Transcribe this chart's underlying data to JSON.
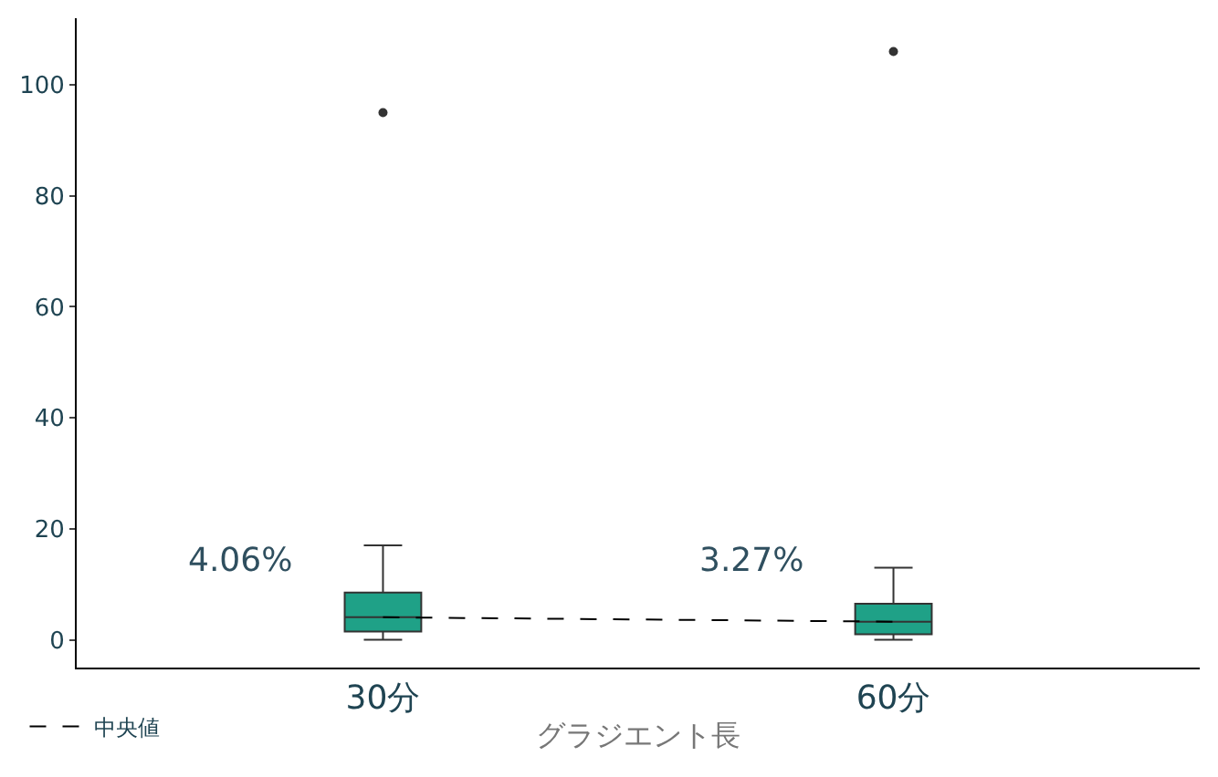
{
  "chart_data": {
    "type": "box",
    "xlabel": "グラジエント長",
    "categories": [
      "30分",
      "60分"
    ],
    "ylim": [
      -5,
      112
    ],
    "yticks": [
      0,
      20,
      40,
      60,
      80,
      100
    ],
    "grid": false,
    "legend": "bottom left",
    "series": [
      {
        "color": "#1fa187",
        "boxes": [
          {
            "low": 0,
            "q1": 1.5,
            "median": 4.06,
            "q3": 8.5,
            "high": 17,
            "outliers": [
              95
            ]
          },
          {
            "low": 0,
            "q1": 1,
            "median": 3.27,
            "q3": 6.5,
            "high": 13,
            "outliers": [
              106
            ]
          }
        ]
      },
      {
        "type": "line",
        "name": "中央値",
        "color": "#000000",
        "line_style": "dashed",
        "marker": "none",
        "values": [
          4.06,
          3.27
        ]
      }
    ],
    "annotations": [
      {
        "text": "4.06%",
        "x": "30分",
        "y": 10
      },
      {
        "text": "3.27%",
        "x": "60分",
        "y": 10
      }
    ]
  }
}
